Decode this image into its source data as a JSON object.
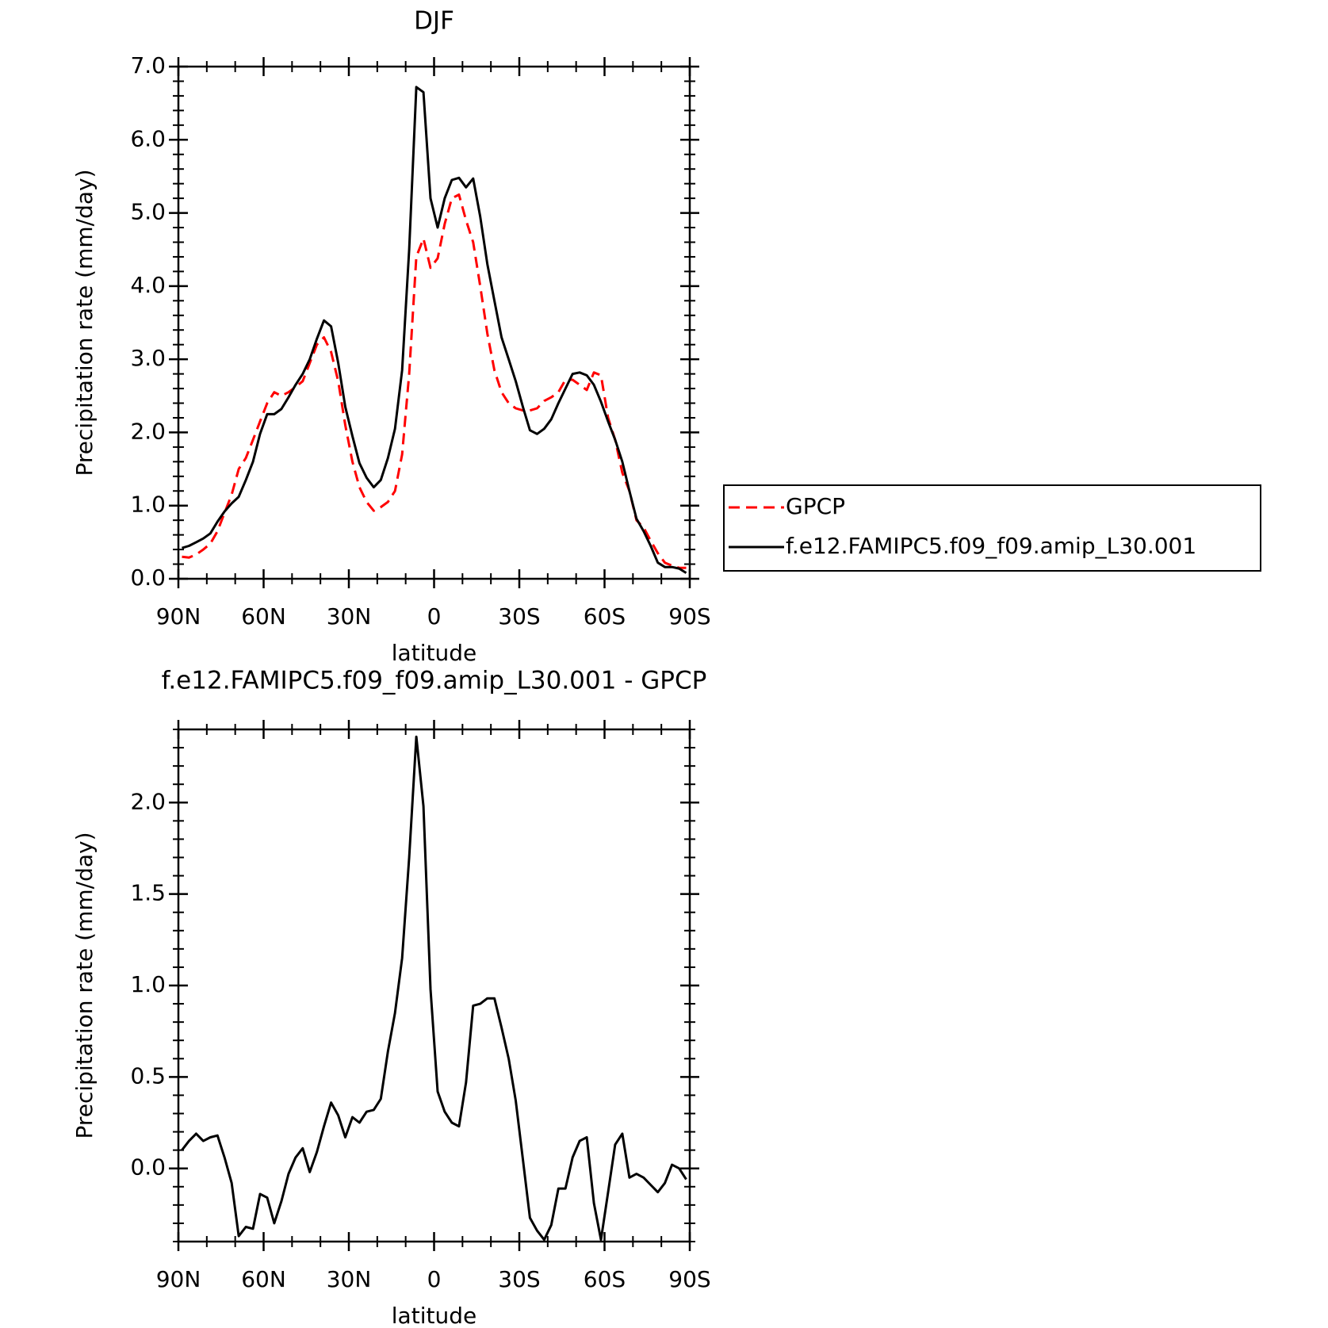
{
  "chart_data": [
    {
      "type": "line",
      "title": "DJF",
      "xlabel": "latitude",
      "ylabel": "Precipitation rate (mm/day)",
      "x": [
        88.75,
        86.25,
        83.75,
        81.25,
        78.75,
        76.25,
        73.75,
        71.25,
        68.75,
        66.25,
        63.75,
        61.25,
        58.75,
        56.25,
        53.75,
        51.25,
        48.75,
        46.25,
        43.75,
        41.25,
        38.75,
        36.25,
        33.75,
        31.25,
        28.75,
        26.25,
        23.75,
        21.25,
        18.75,
        16.25,
        13.75,
        11.25,
        8.75,
        6.25,
        3.75,
        1.25,
        -1.25,
        -3.75,
        -6.25,
        -8.75,
        -11.25,
        -13.75,
        -16.25,
        -18.75,
        -21.25,
        -23.75,
        -26.25,
        -28.75,
        -31.25,
        -33.75,
        -36.25,
        -38.75,
        -41.25,
        -43.75,
        -46.25,
        -48.75,
        -51.25,
        -53.75,
        -56.25,
        -58.75,
        -61.25,
        -63.75,
        -66.25,
        -68.75,
        -71.25,
        -73.75,
        -76.25,
        -78.75,
        -81.25,
        -83.75,
        -86.25,
        -88.75
      ],
      "xlim": [
        90,
        -90
      ],
      "xticks": [
        {
          "value": 90,
          "label": "90N"
        },
        {
          "value": 60,
          "label": "60N"
        },
        {
          "value": 30,
          "label": "30N"
        },
        0,
        {
          "value": -30,
          "label": "30S"
        },
        {
          "value": -60,
          "label": "60S"
        },
        {
          "value": -90,
          "label": "90S"
        }
      ],
      "ylim": [
        0,
        7
      ],
      "yticks": [
        {
          "value": 0,
          "label": "0.0"
        },
        {
          "value": 1,
          "label": "1.0"
        },
        {
          "value": 2,
          "label": "2.0"
        },
        {
          "value": 3,
          "label": "3.0"
        },
        {
          "value": 4,
          "label": "4.0"
        },
        {
          "value": 5,
          "label": "5.0"
        },
        {
          "value": 6,
          "label": "6.0"
        },
        {
          "value": 7,
          "label": "7.0"
        }
      ],
      "legend": "right",
      "series": [
        {
          "name": "GPCP",
          "color": "#ff0000",
          "linestyle": "dashed",
          "values": [
            0.3,
            0.29,
            0.33,
            0.4,
            0.48,
            0.65,
            0.9,
            1.15,
            1.5,
            1.65,
            1.9,
            2.15,
            2.4,
            2.55,
            2.5,
            2.55,
            2.62,
            2.7,
            2.95,
            3.2,
            3.3,
            3.1,
            2.7,
            2.1,
            1.6,
            1.25,
            1.05,
            0.93,
            0.98,
            1.05,
            1.2,
            1.7,
            2.8,
            4.4,
            4.65,
            4.25,
            4.38,
            4.85,
            5.2,
            5.25,
            4.9,
            4.6,
            4.0,
            3.35,
            2.85,
            2.55,
            2.4,
            2.33,
            2.3,
            2.3,
            2.33,
            2.43,
            2.48,
            2.55,
            2.72,
            2.72,
            2.65,
            2.58,
            2.82,
            2.78,
            2.2,
            1.9,
            1.45,
            1.2,
            0.8,
            0.7,
            0.52,
            0.35,
            0.22,
            0.18,
            0.15,
            0.15
          ]
        },
        {
          "name": "f.e12.FAMIPC5.f09_f09.amip_L30.001",
          "color": "#000000",
          "linestyle": "solid",
          "values": [
            0.42,
            0.45,
            0.5,
            0.55,
            0.62,
            0.78,
            0.92,
            1.03,
            1.12,
            1.35,
            1.6,
            1.98,
            2.25,
            2.25,
            2.32,
            2.48,
            2.65,
            2.8,
            3.0,
            3.28,
            3.53,
            3.45,
            2.95,
            2.35,
            1.95,
            1.58,
            1.38,
            1.25,
            1.35,
            1.65,
            2.05,
            2.85,
            4.5,
            6.72,
            6.65,
            5.2,
            4.8,
            5.2,
            5.45,
            5.48,
            5.35,
            5.47,
            4.95,
            4.3,
            3.8,
            3.3,
            3.0,
            2.7,
            2.35,
            2.03,
            1.98,
            2.05,
            2.18,
            2.4,
            2.6,
            2.8,
            2.82,
            2.78,
            2.65,
            2.42,
            2.15,
            1.9,
            1.6,
            1.2,
            0.82,
            0.65,
            0.45,
            0.22,
            0.16,
            0.16,
            0.14,
            0.08
          ]
        }
      ]
    },
    {
      "type": "line",
      "title": "f.e12.FAMIPC5.f09_f09.amip_L30.001 - GPCP",
      "xlabel": "latitude",
      "ylabel": "Precipitation rate (mm/day)",
      "x": [
        88.75,
        86.25,
        83.75,
        81.25,
        78.75,
        76.25,
        73.75,
        71.25,
        68.75,
        66.25,
        63.75,
        61.25,
        58.75,
        56.25,
        53.75,
        51.25,
        48.75,
        46.25,
        43.75,
        41.25,
        38.75,
        36.25,
        33.75,
        31.25,
        28.75,
        26.25,
        23.75,
        21.25,
        18.75,
        16.25,
        13.75,
        11.25,
        8.75,
        6.25,
        3.75,
        1.25,
        -1.25,
        -3.75,
        -6.25,
        -8.75,
        -11.25,
        -13.75,
        -16.25,
        -18.75,
        -21.25,
        -23.75,
        -26.25,
        -28.75,
        -31.25,
        -33.75,
        -36.25,
        -38.75,
        -41.25,
        -43.75,
        -46.25,
        -48.75,
        -51.25,
        -53.75,
        -56.25,
        -58.75,
        -61.25,
        -63.75,
        -66.25,
        -68.75,
        -71.25,
        -73.75,
        -76.25,
        -78.75,
        -81.25,
        -83.75,
        -86.25,
        -88.75
      ],
      "xlim": [
        90,
        -90
      ],
      "xticks": [
        {
          "value": 90,
          "label": "90N"
        },
        {
          "value": 60,
          "label": "60N"
        },
        {
          "value": 30,
          "label": "30N"
        },
        0,
        {
          "value": -30,
          "label": "30S"
        },
        {
          "value": -60,
          "label": "60S"
        },
        {
          "value": -90,
          "label": "90S"
        }
      ],
      "ylim": [
        -0.4,
        2.4
      ],
      "yticks": [
        {
          "value": 0,
          "label": "0.0"
        },
        0.5,
        {
          "value": 1,
          "label": "1.0"
        },
        1.5,
        {
          "value": 2,
          "label": "2.0"
        }
      ],
      "series": [
        {
          "color": "#000000",
          "linestyle": "solid",
          "values": [
            0.1,
            0.15,
            0.19,
            0.15,
            0.17,
            0.18,
            0.06,
            -0.08,
            -0.37,
            -0.32,
            -0.33,
            -0.14,
            -0.16,
            -0.3,
            -0.18,
            -0.03,
            0.06,
            0.11,
            -0.02,
            0.09,
            0.23,
            0.36,
            0.29,
            0.17,
            0.28,
            0.25,
            0.31,
            0.32,
            0.38,
            0.64,
            0.85,
            1.15,
            1.7,
            2.36,
            1.98,
            0.98,
            0.42,
            0.31,
            0.25,
            0.23,
            0.47,
            0.89,
            0.9,
            0.93,
            0.93,
            0.77,
            0.6,
            0.37,
            0.05,
            -0.27,
            -0.34,
            -0.39,
            -0.31,
            -0.11,
            -0.11,
            0.06,
            0.15,
            0.17,
            -0.19,
            -0.39,
            -0.13,
            0.13,
            0.19,
            -0.05,
            -0.03,
            -0.05,
            -0.09,
            -0.13,
            -0.08,
            0.02,
            0.0,
            -0.06
          ]
        }
      ]
    }
  ]
}
